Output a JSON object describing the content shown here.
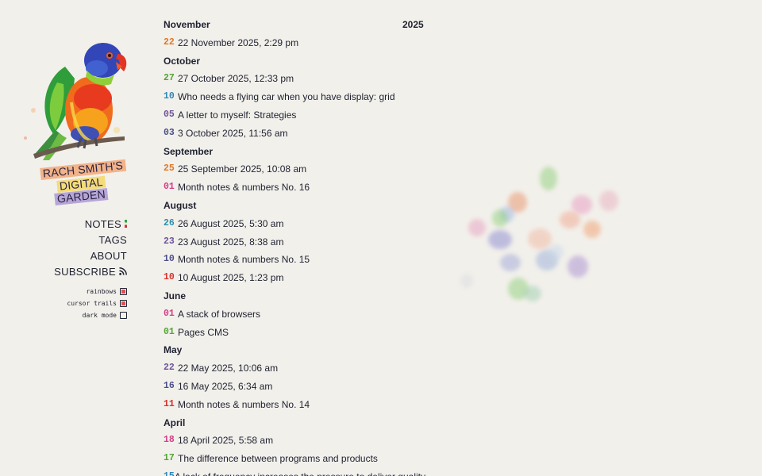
{
  "site": {
    "logo_lines": [
      "RACH SMITH'S",
      "DIGITAL",
      "GARDEN"
    ]
  },
  "nav": {
    "items": [
      {
        "label": "NOTES"
      },
      {
        "label": "TAGS"
      },
      {
        "label": "ABOUT"
      },
      {
        "label": "SUBSCRIBE"
      }
    ]
  },
  "toggles": [
    {
      "label": "rainbows",
      "checked": true
    },
    {
      "label": "cursor trails",
      "checked": true
    },
    {
      "label": "dark mode",
      "checked": false
    }
  ],
  "year": "2025",
  "months": [
    {
      "name": "November",
      "entries": [
        {
          "day": "22",
          "title": "22 November 2025, 2:29 pm",
          "color": "#e07826"
        }
      ]
    },
    {
      "name": "October",
      "entries": [
        {
          "day": "27",
          "title": "27 October 2025, 12:33 pm",
          "color": "#53a534"
        },
        {
          "day": "10",
          "title": "Who needs a flying car when you have display: grid",
          "color": "#2f86b8"
        },
        {
          "day": "05",
          "title": "A letter to myself: Strategies",
          "color": "#6d559b"
        },
        {
          "day": "03",
          "title": "3 October 2025, 11:56 am",
          "color": "#4b4f8a"
        }
      ]
    },
    {
      "name": "September",
      "entries": [
        {
          "day": "25",
          "title": "25 September 2025, 10:08 am",
          "color": "#e07826"
        },
        {
          "day": "01",
          "title": "Month notes & numbers No. 16",
          "color": "#d63d86"
        }
      ]
    },
    {
      "name": "August",
      "entries": [
        {
          "day": "26",
          "title": "26 August 2025, 5:30 am",
          "color": "#2b8eae"
        },
        {
          "day": "23",
          "title": "23 August 2025, 8:38 am",
          "color": "#6d559b"
        },
        {
          "day": "10",
          "title": "Month notes & numbers No. 15",
          "color": "#4b4f8a"
        },
        {
          "day": "10",
          "title": "10 August 2025, 1:23 pm",
          "color": "#d8312c"
        }
      ]
    },
    {
      "name": "June",
      "entries": [
        {
          "day": "01",
          "title": "A stack of browsers",
          "color": "#d63d86"
        },
        {
          "day": "01",
          "title": "Pages CMS",
          "color": "#53a534"
        }
      ]
    },
    {
      "name": "May",
      "entries": [
        {
          "day": "22",
          "title": "22 May 2025, 10:06 am",
          "color": "#6d559b"
        },
        {
          "day": "16",
          "title": "16 May 2025, 6:34 am",
          "color": "#4b4f8a"
        },
        {
          "day": "11",
          "title": "Month notes & numbers No. 14",
          "color": "#d8312c"
        }
      ]
    },
    {
      "name": "April",
      "entries": [
        {
          "day": "18",
          "title": "18 April 2025, 5:58 am",
          "color": "#d63d86"
        },
        {
          "day": "17",
          "title": "The difference between programs and products",
          "color": "#53a534"
        },
        {
          "day": "15",
          "title": "A lack of frequency increases the pressure to deliver quality",
          "color": "#2f86b8"
        }
      ]
    }
  ],
  "icons": {
    "parrot": "parrot-illustration",
    "flag": "italy-flag-icon",
    "rss": "rss-icon"
  }
}
